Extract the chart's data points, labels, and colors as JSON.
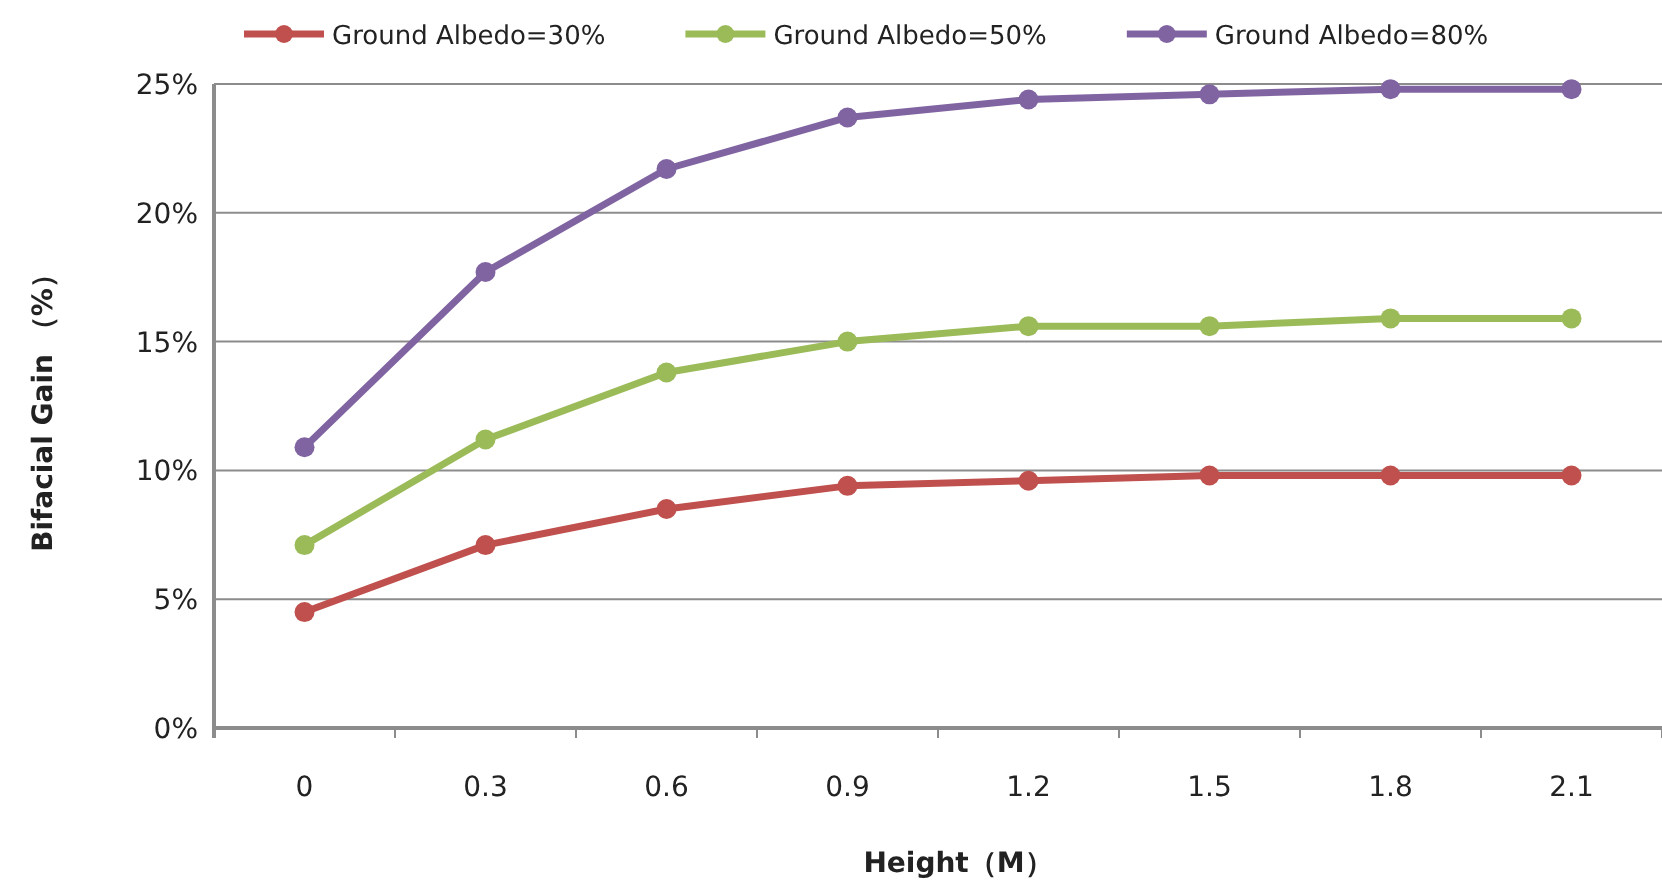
{
  "chart_data": {
    "type": "line",
    "xlabel": "Height（M）",
    "ylabel": "Bifacial Gain （%）",
    "categories": [
      "0",
      "0.3",
      "0.6",
      "0.9",
      "1.2",
      "1.5",
      "1.8",
      "2.1"
    ],
    "series": [
      {
        "name": "Ground Albedo=30%",
        "color": "#c0504d",
        "values": [
          4.5,
          7.1,
          8.5,
          9.4,
          9.6,
          9.8,
          9.8,
          9.8
        ]
      },
      {
        "name": "Ground Albedo=50%",
        "color": "#9bbb59",
        "values": [
          7.1,
          11.2,
          13.8,
          15.0,
          15.6,
          15.6,
          15.9,
          15.9
        ]
      },
      {
        "name": "Ground Albedo=80%",
        "color": "#8064a2",
        "values": [
          10.9,
          17.7,
          21.7,
          23.7,
          24.4,
          24.6,
          24.8,
          24.8
        ]
      }
    ],
    "ylim": [
      0,
      25
    ],
    "yticks": [
      {
        "value": 0,
        "label": "0%"
      },
      {
        "value": 5,
        "label": "5%"
      },
      {
        "value": 10,
        "label": "10%"
      },
      {
        "value": 15,
        "label": "15%"
      },
      {
        "value": 20,
        "label": "20%"
      },
      {
        "value": 25,
        "label": "25%"
      }
    ],
    "grid": "y",
    "legend": "top",
    "marker": "circle",
    "line_style": "solid"
  }
}
